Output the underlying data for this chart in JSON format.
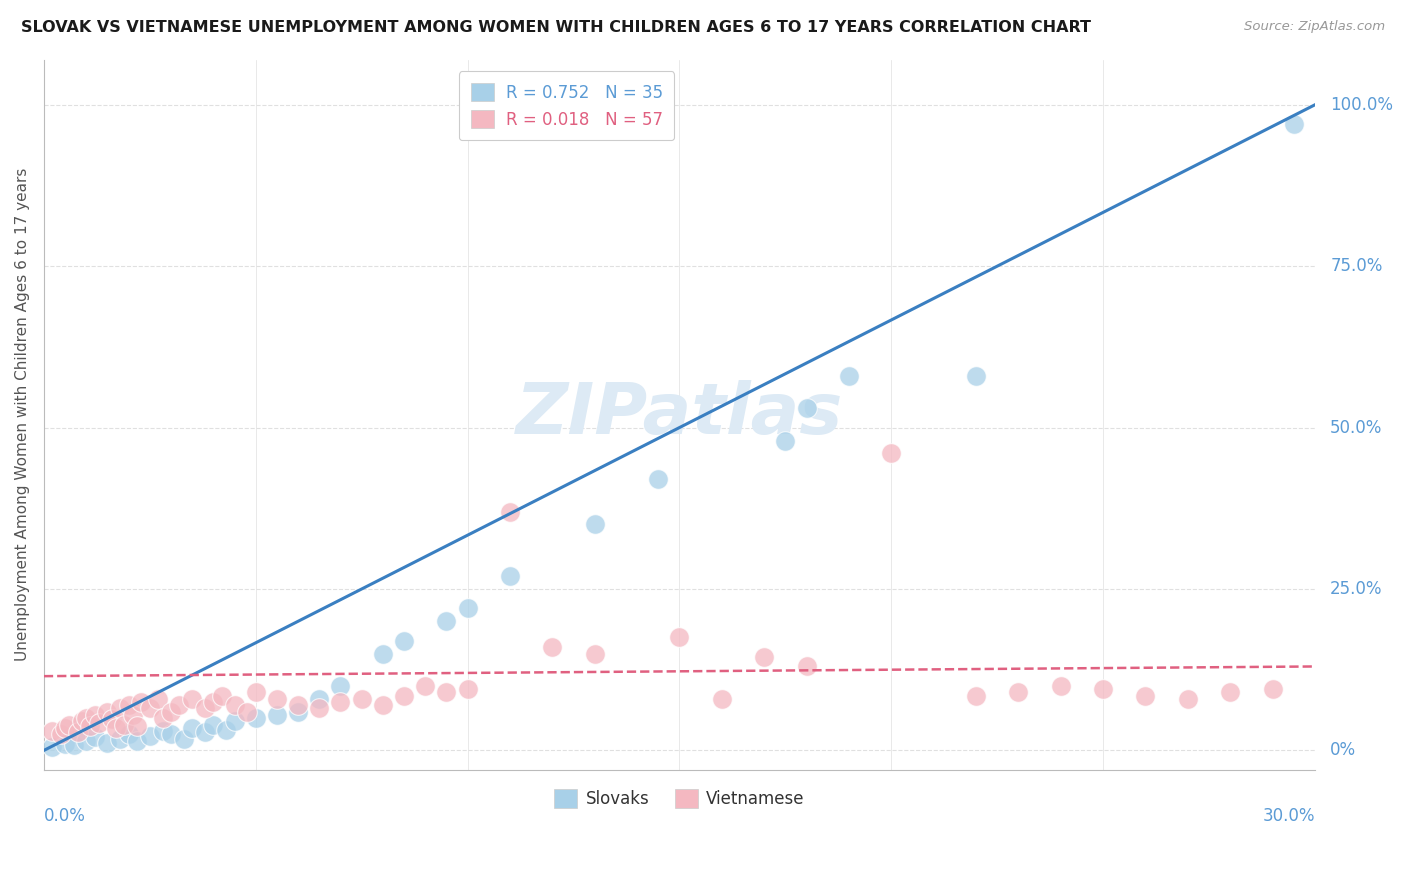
{
  "title": "SLOVAK VS VIETNAMESE UNEMPLOYMENT AMONG WOMEN WITH CHILDREN AGES 6 TO 17 YEARS CORRELATION CHART",
  "source": "Source: ZipAtlas.com",
  "ylabel": "Unemployment Among Women with Children Ages 6 to 17 years",
  "xlim": [
    0.0,
    0.3
  ],
  "ylim": [
    -0.03,
    1.07
  ],
  "slovak_color": "#a8d0e8",
  "vietnamese_color": "#f4b8c1",
  "slovak_line_color": "#3a7fc1",
  "vietnamese_line_color": "#e06080",
  "right_tick_color": "#5b9bd5",
  "grid_color": "#e0e0e0",
  "background": "#ffffff",
  "title_color": "#1a1a1a",
  "source_color": "#999999",
  "axis_label_color": "#555555",
  "watermark_color": "#ddeaf5",
  "legend_text_color_slovak": "#5b9bd5",
  "legend_text_color_viet": "#e06080",
  "slovak_R": 0.752,
  "slovak_N": 35,
  "vietnamese_R": 0.018,
  "vietnamese_N": 57,
  "slovak_x": [
    0.002,
    0.005,
    0.007,
    0.01,
    0.012,
    0.015,
    0.018,
    0.02,
    0.022,
    0.025,
    0.028,
    0.03,
    0.033,
    0.035,
    0.038,
    0.04,
    0.043,
    0.045,
    0.05,
    0.055,
    0.06,
    0.065,
    0.07,
    0.08,
    0.085,
    0.095,
    0.1,
    0.11,
    0.13,
    0.145,
    0.175,
    0.18,
    0.19,
    0.22,
    0.295
  ],
  "slovak_y": [
    0.005,
    0.01,
    0.008,
    0.015,
    0.02,
    0.012,
    0.018,
    0.025,
    0.015,
    0.022,
    0.03,
    0.025,
    0.018,
    0.035,
    0.028,
    0.04,
    0.032,
    0.045,
    0.05,
    0.055,
    0.06,
    0.08,
    0.1,
    0.15,
    0.17,
    0.2,
    0.22,
    0.27,
    0.35,
    0.42,
    0.48,
    0.53,
    0.58,
    0.58,
    0.97
  ],
  "viet_x": [
    0.002,
    0.004,
    0.005,
    0.006,
    0.008,
    0.009,
    0.01,
    0.011,
    0.012,
    0.013,
    0.015,
    0.016,
    0.017,
    0.018,
    0.019,
    0.02,
    0.021,
    0.022,
    0.023,
    0.025,
    0.027,
    0.028,
    0.03,
    0.032,
    0.035,
    0.038,
    0.04,
    0.042,
    0.045,
    0.048,
    0.05,
    0.055,
    0.06,
    0.065,
    0.07,
    0.075,
    0.08,
    0.085,
    0.09,
    0.095,
    0.1,
    0.11,
    0.12,
    0.13,
    0.15,
    0.16,
    0.17,
    0.18,
    0.2,
    0.22,
    0.23,
    0.24,
    0.25,
    0.26,
    0.27,
    0.28,
    0.29
  ],
  "viet_y": [
    0.03,
    0.025,
    0.035,
    0.04,
    0.028,
    0.045,
    0.05,
    0.038,
    0.055,
    0.042,
    0.06,
    0.048,
    0.035,
    0.065,
    0.04,
    0.07,
    0.055,
    0.038,
    0.075,
    0.065,
    0.08,
    0.05,
    0.06,
    0.07,
    0.08,
    0.065,
    0.075,
    0.085,
    0.07,
    0.06,
    0.09,
    0.08,
    0.07,
    0.065,
    0.075,
    0.08,
    0.07,
    0.085,
    0.1,
    0.09,
    0.095,
    0.37,
    0.16,
    0.15,
    0.175,
    0.08,
    0.145,
    0.13,
    0.46,
    0.085,
    0.09,
    0.1,
    0.095,
    0.085,
    0.08,
    0.09,
    0.095
  ],
  "ytick_vals": [
    0.0,
    0.25,
    0.5,
    0.75,
    1.0
  ],
  "ytick_labels": [
    "0%",
    "25.0%",
    "50.0%",
    "75.0%",
    "100.0%"
  ],
  "slovak_line_x": [
    0.0,
    0.3
  ],
  "slovak_line_y": [
    0.0,
    1.0
  ],
  "viet_line_x": [
    0.0,
    0.3
  ],
  "viet_line_y": [
    0.115,
    0.13
  ]
}
